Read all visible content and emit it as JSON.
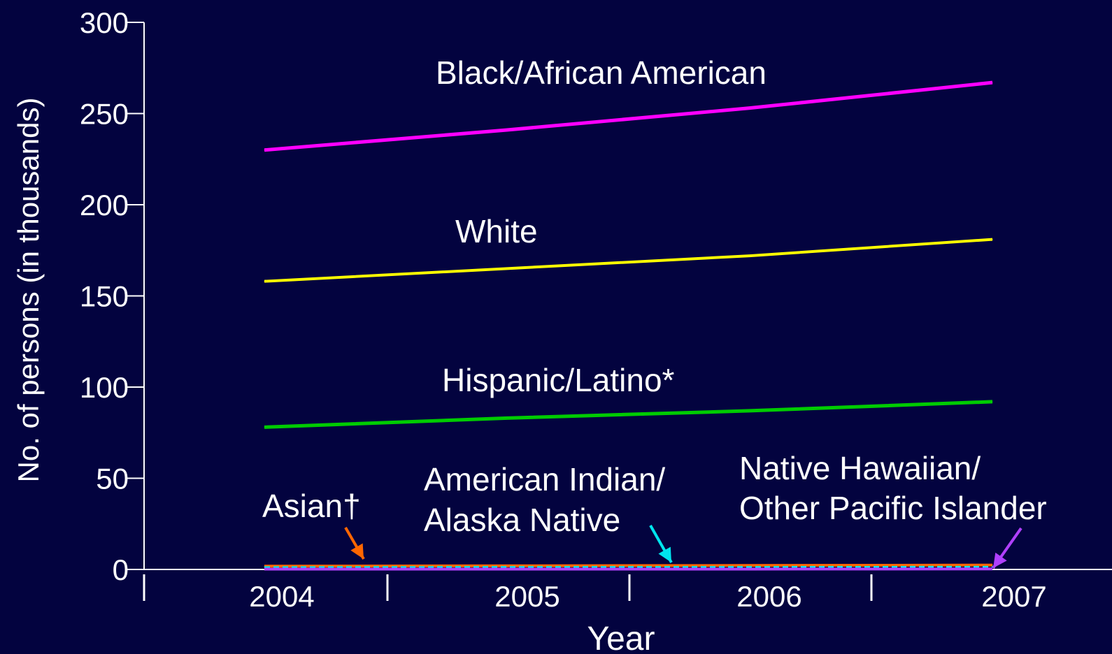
{
  "chart_data": {
    "type": "line",
    "title": "",
    "xlabel": "Year",
    "ylabel": "No. of persons (in thousands)",
    "x": [
      "2004",
      "2005",
      "2006",
      "2007"
    ],
    "ylim": [
      0,
      300
    ],
    "yticks": [
      "0",
      "50",
      "100",
      "150",
      "200",
      "250",
      "300"
    ],
    "grid": false,
    "legend": "none (labels placed next to lines)",
    "series": [
      {
        "name": "Black/African American",
        "label_lines": [
          "Black/African American"
        ],
        "values": [
          230,
          241,
          253,
          267
        ],
        "color": "#ff00ff",
        "style": "solid"
      },
      {
        "name": "White",
        "label_lines": [
          "White"
        ],
        "values": [
          158,
          165,
          172,
          181
        ],
        "color": "#ffff00",
        "style": "solid"
      },
      {
        "name": "Hispanic/Latino*",
        "label_lines": [
          "Hispanic/Latino*"
        ],
        "values": [
          78,
          83,
          87,
          92
        ],
        "color": "#00cc00",
        "style": "solid"
      },
      {
        "name": "Asian†",
        "label_lines": [
          "Asian†"
        ],
        "values": [
          1.8,
          2.0,
          2.2,
          2.4
        ],
        "color": "#ff6600",
        "style": "solid"
      },
      {
        "name": "American Indian/ Alaska Native",
        "label_lines": [
          "American Indian/",
          "Alaska Native"
        ],
        "values": [
          1.2,
          1.3,
          1.3,
          1.4
        ],
        "color": "#00e5ee",
        "style": "dashed"
      },
      {
        "name": "Native Hawaiian/ Other Pacific Islander",
        "label_lines": [
          "Native Hawaiian/",
          "Other Pacific Islander"
        ],
        "values": [
          0.2,
          0.2,
          0.2,
          0.3
        ],
        "color": "#b040ff",
        "style": "solid"
      }
    ]
  }
}
